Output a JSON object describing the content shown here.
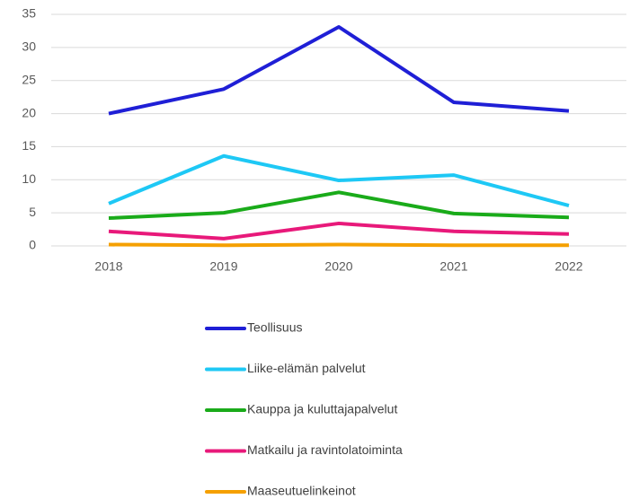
{
  "chart_data": {
    "type": "line",
    "categories": [
      "2018",
      "2019",
      "2020",
      "2021",
      "2022"
    ],
    "series": [
      {
        "name": "Teollisuus",
        "color": "#1f1fd6",
        "values": [
          20.0,
          23.7,
          33.1,
          21.7,
          20.4
        ]
      },
      {
        "name": "Liike-elämän palvelut",
        "color": "#1ec8f5",
        "values": [
          6.4,
          13.6,
          9.9,
          10.7,
          6.1
        ]
      },
      {
        "name": "Kauppa ja kuluttajapalvelut",
        "color": "#1aab1a",
        "values": [
          4.2,
          5.0,
          8.1,
          4.9,
          4.3
        ]
      },
      {
        "name": "Matkailu ja ravintolatoiminta",
        "color": "#e8197a",
        "values": [
          2.2,
          1.1,
          3.4,
          2.2,
          1.8
        ]
      },
      {
        "name": "Maaseutuelinkeinot",
        "color": "#f5a000",
        "values": [
          0.2,
          0.1,
          0.2,
          0.1,
          0.1
        ]
      }
    ],
    "ylim": [
      0,
      35
    ],
    "yticks": [
      0,
      5,
      10,
      15,
      20,
      25,
      30,
      35
    ],
    "grid": true,
    "legend": "bottom"
  }
}
